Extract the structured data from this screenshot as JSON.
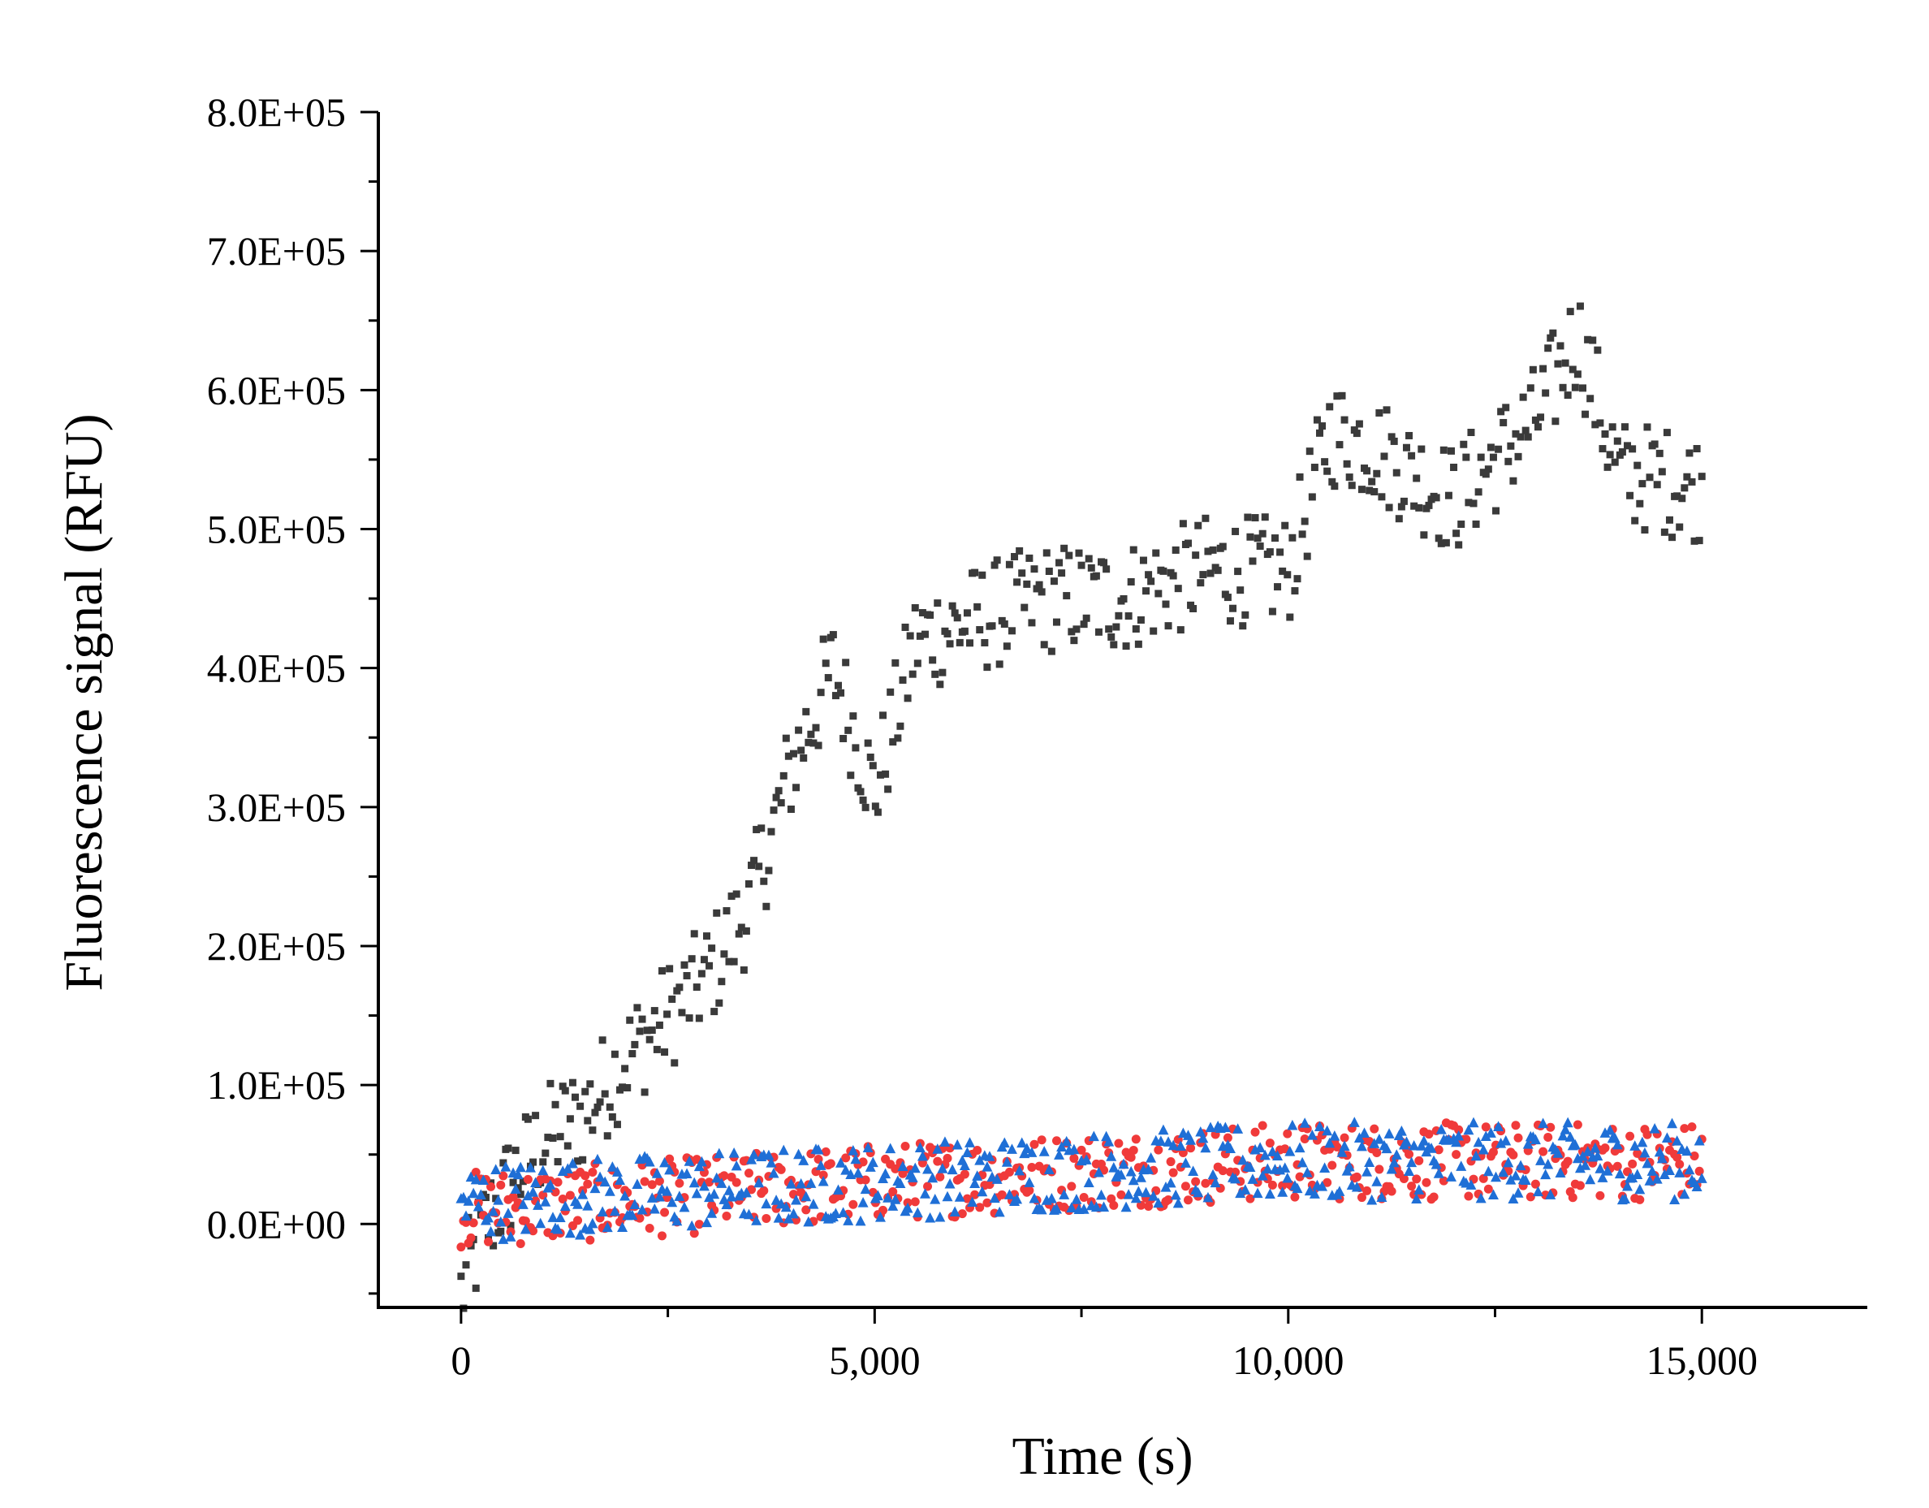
{
  "chart_data": {
    "type": "scatter",
    "title": "",
    "xlabel": "Time (s)",
    "ylabel": "Fluorescence signal (RFU)",
    "xlim": [
      -1000,
      17000
    ],
    "ylim": [
      -60000,
      800000
    ],
    "xticks": [
      0,
      5000,
      10000,
      15000
    ],
    "xtick_labels": [
      "0",
      "5,000",
      "10,000",
      "15,000"
    ],
    "yticks": [
      0,
      100000,
      200000,
      300000,
      400000,
      500000,
      600000,
      700000,
      800000
    ],
    "ytick_labels": [
      "0.0E+00",
      "1.0E+05",
      "2.0E+05",
      "3.0E+05",
      "4.0E+05",
      "5.0E+05",
      "6.0E+05",
      "7.0E+05",
      "8.0E+05"
    ],
    "sampling_interval_s": 30,
    "x_range": [
      0,
      15000
    ],
    "legend": "none",
    "series": [
      {
        "name": "black squares",
        "marker": "square",
        "color": "#3a3a3a",
        "trend_points": [
          [
            0,
            -50000
          ],
          [
            300,
            0
          ],
          [
            600,
            30000
          ],
          [
            1000,
            60000
          ],
          [
            1500,
            80000
          ],
          [
            2000,
            120000
          ],
          [
            2500,
            150000
          ],
          [
            3000,
            180000
          ],
          [
            3500,
            230000
          ],
          [
            4000,
            330000
          ],
          [
            4500,
            400000
          ],
          [
            5000,
            310000
          ],
          [
            5500,
            420000
          ],
          [
            6000,
            430000
          ],
          [
            7000,
            450000
          ],
          [
            8000,
            450000
          ],
          [
            9000,
            470000
          ],
          [
            10000,
            470000
          ],
          [
            10500,
            570000
          ],
          [
            11000,
            560000
          ],
          [
            12000,
            520000
          ],
          [
            13000,
            580000
          ],
          [
            13500,
            640000
          ],
          [
            14000,
            540000
          ],
          [
            15000,
            530000
          ]
        ],
        "noise": 40000
      },
      {
        "name": "red circles",
        "marker": "circle",
        "color": "#f03a3a",
        "trend_points": [
          [
            0,
            10000
          ],
          [
            1500,
            15000
          ],
          [
            5000,
            30000
          ],
          [
            10000,
            45000
          ],
          [
            15000,
            45000
          ]
        ],
        "noise": 28000
      },
      {
        "name": "blue triangles",
        "marker": "triangle",
        "color": "#1f6fd6",
        "trend_points": [
          [
            0,
            15000
          ],
          [
            1500,
            20000
          ],
          [
            5000,
            30000
          ],
          [
            10000,
            45000
          ],
          [
            15000,
            45000
          ]
        ],
        "noise": 28000
      }
    ]
  }
}
